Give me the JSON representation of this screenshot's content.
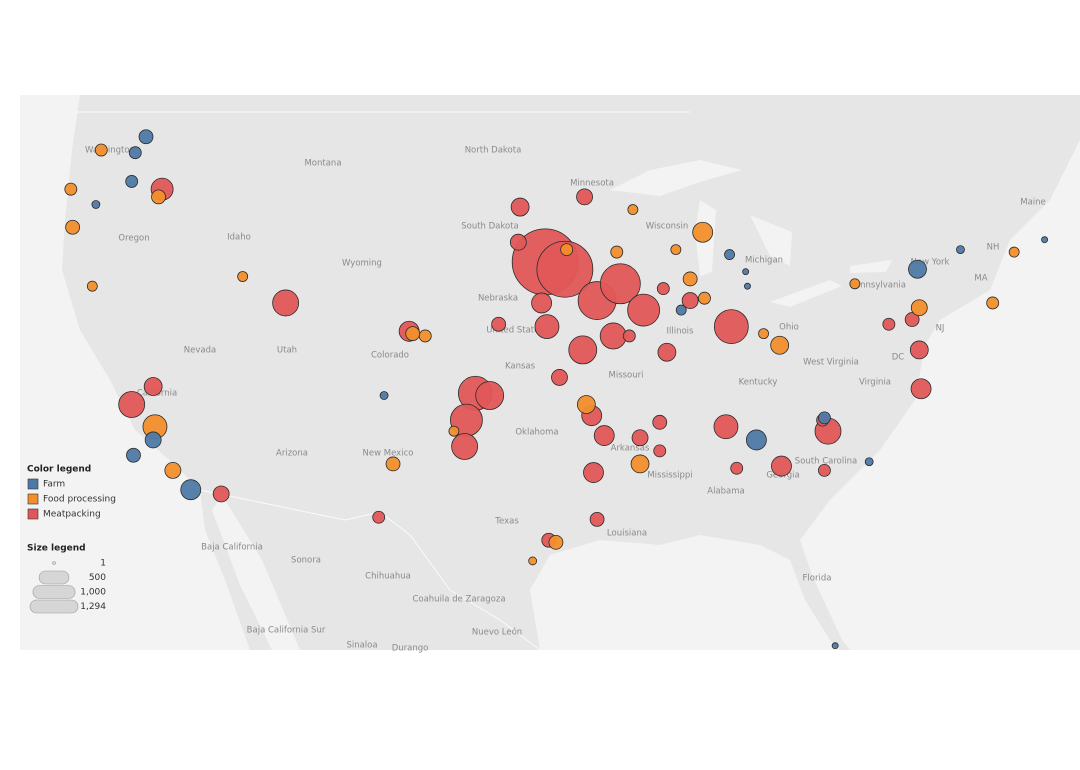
{
  "chart_data": {
    "type": "bubble-map",
    "color_legend_title": "Color legend",
    "size_legend_title": "Size legend",
    "size_ticks": [
      1,
      500,
      {
        "value": 1000,
        "label": "1,000"
      },
      {
        "value": 1294,
        "label": "1,294"
      }
    ],
    "series": [
      {
        "name": "Meatpacking",
        "color": "#e15759",
        "lon": [
          -96.3,
          -95.2,
          -93.4,
          -92.1,
          -100.2,
          -100.7,
          -85.9,
          -90.8,
          -94.2,
          -110.8,
          -100.8,
          -99.4,
          -96.2,
          -92.5,
          -86.2,
          -119.4,
          -117.7,
          -97.7,
          -94.1,
          -93.0,
          -93.6,
          -118.2,
          -114.4,
          -75.3,
          -75.4,
          -80.5,
          -95.5,
          -91.0,
          -93.7,
          -83.1,
          -89.5,
          -85.6,
          -96.5,
          -98.9,
          -96.1,
          -105.6,
          -93.4,
          -80.7,
          -89.9,
          -75.8,
          -103.9,
          -97.8,
          -88.2,
          -89.7,
          -91.6,
          -77.1,
          -89.9,
          -80.8
        ],
        "lat": [
          43.0,
          42.7,
          41.4,
          42.1,
          37.4,
          36.2,
          40.3,
          41.0,
          39.3,
          41.3,
          35.0,
          37.3,
          40.3,
          39.9,
          35.9,
          36.9,
          45.9,
          45.2,
          45.6,
          35.5,
          33.8,
          37.7,
          32.8,
          37.6,
          39.3,
          35.7,
          38.1,
          35.4,
          36.4,
          34.1,
          39.2,
          34.0,
          41.3,
          40.4,
          30.6,
          31.7,
          31.6,
          33.9,
          36.1,
          40.6,
          40.1,
          43.8,
          41.4,
          41.9,
          39.9,
          40.4,
          34.8,
          36.2
        ],
        "values": [
          1294,
          931,
          429,
          475,
          343,
          304,
          343,
          304,
          233,
          201,
          201,
          233,
          171,
          201,
          171,
          201,
          144,
          96,
          76,
          119,
          119,
          96,
          76,
          119,
          96,
          201,
          76,
          76,
          119,
          119,
          96,
          43,
          119,
          58,
          58,
          43,
          58,
          43,
          58,
          58,
          119,
          76,
          76,
          43,
          43,
          43,
          43,
          43
        ]
      },
      {
        "name": "Food processing",
        "color": "#f28e2b",
        "lon": [
          -118.1,
          -87.5,
          -91.0,
          -94.0,
          -83.2,
          -75.4,
          -95.7,
          -122.8,
          -122.7,
          -104.8,
          -71.3,
          -113.2,
          -103.0,
          -117.9,
          -95.1,
          -88.2,
          -87.4,
          -92.3,
          -121.6,
          -84.1,
          -79.0,
          -91.4,
          -121.1,
          -117.1,
          -103.7,
          -89.0,
          -70.1,
          -97.0,
          -101.4
        ],
        "lat": [
          35.9,
          44.2,
          34.2,
          36.9,
          39.5,
          41.1,
          30.5,
          45.9,
          44.4,
          34.2,
          41.3,
          42.4,
          39.9,
          45.6,
          43.5,
          42.3,
          41.5,
          43.4,
          42.0,
          40.0,
          42.1,
          45.1,
          47.4,
          33.9,
          40.0,
          43.5,
          43.4,
          29.6,
          35.7
        ],
        "values": [
          171,
          119,
          96,
          96,
          96,
          76,
          58,
          43,
          58,
          58,
          43,
          30,
          43,
          58,
          43,
          58,
          43,
          43,
          30,
          30,
          30,
          30,
          43,
          76,
          58,
          30,
          30,
          19,
          30
        ]
      },
      {
        "name": "Farm",
        "color": "#4e79a7",
        "lon": [
          -118.6,
          -75.5,
          -116.1,
          -118.2,
          -84.5,
          -119.3,
          -80.7,
          -119.2,
          -86.0,
          -119.4,
          -105.3,
          -78.2,
          -73.1,
          -80.1,
          -88.7,
          -121.4,
          -68.4,
          -85.1,
          -85.0
        ],
        "lat": [
          47.9,
          42.7,
          33.0,
          35.3,
          35.3,
          34.6,
          36.3,
          47.3,
          43.3,
          46.2,
          37.3,
          34.3,
          43.5,
          25.4,
          41.0,
          45.3,
          43.9,
          42.6,
          42.0
        ],
        "values": [
          58,
          96,
          119,
          76,
          119,
          58,
          43,
          43,
          30,
          43,
          19,
          19,
          19,
          11,
          30,
          19,
          11,
          11,
          11
        ]
      }
    ],
    "map_labels": [
      "Washington",
      "Montana",
      "North Dakota",
      "Minnesota",
      "Oregon",
      "Idaho",
      "South Dakota",
      "Wisconsin",
      "Michigan",
      "Wyoming",
      "Nebraska",
      "United States",
      "Nevada",
      "Utah",
      "Colorado",
      "Kansas",
      "Missouri",
      "Illinois",
      "Ohio",
      "Pennsylvania",
      "West Virginia",
      "Virginia",
      "Kentucky",
      "California",
      "Arizona",
      "New Mexico",
      "Oklahoma",
      "Arkansas",
      "Mississippi",
      "Alabama",
      "Georgia",
      "South Carolina",
      "Texas",
      "Louisiana",
      "Florida",
      "Maine",
      "New York",
      "NH",
      "MA",
      "NJ",
      "DC",
      "Baja California",
      "Sonora",
      "Chihuahua",
      "Coahuila de Zaragoza",
      "Nuevo León",
      "Baja California Sur",
      "Sinaloa",
      "Durango"
    ]
  }
}
